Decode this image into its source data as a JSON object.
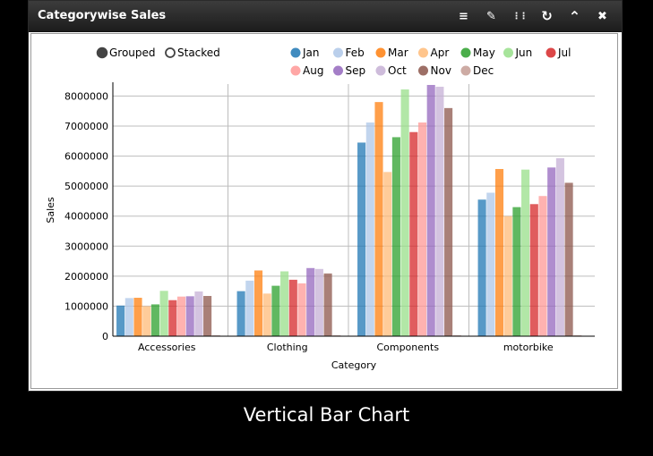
{
  "widget": {
    "title": "Categorywise Sales",
    "tools": [
      {
        "icon": "menu-icon",
        "glyph": "≡"
      },
      {
        "icon": "pencil-icon",
        "glyph": "✎"
      },
      {
        "icon": "grid-icon",
        "glyph": "⋮⋮"
      },
      {
        "icon": "refresh-icon",
        "glyph": "↻"
      },
      {
        "icon": "collapse-icon",
        "glyph": "⌃"
      },
      {
        "icon": "close-icon",
        "glyph": "✖"
      }
    ]
  },
  "caption": "Vertical Bar Chart",
  "controls": {
    "grouped_label": "Grouped",
    "stacked_label": "Stacked",
    "selected": "grouped"
  },
  "chart_data": {
    "type": "bar",
    "mode": "grouped",
    "xlabel": "Category",
    "ylabel": "Sales",
    "ylim": [
      0,
      8400000
    ],
    "yticks": [
      0,
      1000000,
      2000000,
      3000000,
      4000000,
      5000000,
      6000000,
      7000000,
      8000000
    ],
    "grid": true,
    "legend_position": "top-right",
    "categories": [
      "Accessories",
      "Clothing",
      "Components",
      "motorbike"
    ],
    "series": [
      {
        "name": "Jan",
        "color": "#1f77b4",
        "values": [
          1020000,
          1500000,
          6450000,
          4550000
        ]
      },
      {
        "name": "Feb",
        "color": "#aec7e8",
        "values": [
          1270000,
          1850000,
          7120000,
          4780000
        ]
      },
      {
        "name": "Mar",
        "color": "#ff7f0e",
        "values": [
          1280000,
          2190000,
          7800000,
          5570000
        ]
      },
      {
        "name": "Apr",
        "color": "#ffbb78",
        "values": [
          1000000,
          1420000,
          5470000,
          4000000
        ]
      },
      {
        "name": "May",
        "color": "#2ca02c",
        "values": [
          1060000,
          1680000,
          6630000,
          4300000
        ]
      },
      {
        "name": "Jun",
        "color": "#98df8a",
        "values": [
          1510000,
          2160000,
          8220000,
          5550000
        ]
      },
      {
        "name": "Jul",
        "color": "#d62728",
        "values": [
          1200000,
          1880000,
          6800000,
          4400000
        ]
      },
      {
        "name": "Aug",
        "color": "#ff9896",
        "values": [
          1320000,
          1760000,
          7120000,
          4670000
        ]
      },
      {
        "name": "Sep",
        "color": "#9467bd",
        "values": [
          1330000,
          2270000,
          8370000,
          5620000
        ]
      },
      {
        "name": "Oct",
        "color": "#c5b0d5",
        "values": [
          1490000,
          2240000,
          8310000,
          5930000
        ]
      },
      {
        "name": "Nov",
        "color": "#8c564b",
        "values": [
          1340000,
          2090000,
          7600000,
          5110000
        ]
      },
      {
        "name": "Dec",
        "color": "#c49c94",
        "values": [
          5000,
          5000,
          5000,
          5000
        ]
      }
    ]
  }
}
